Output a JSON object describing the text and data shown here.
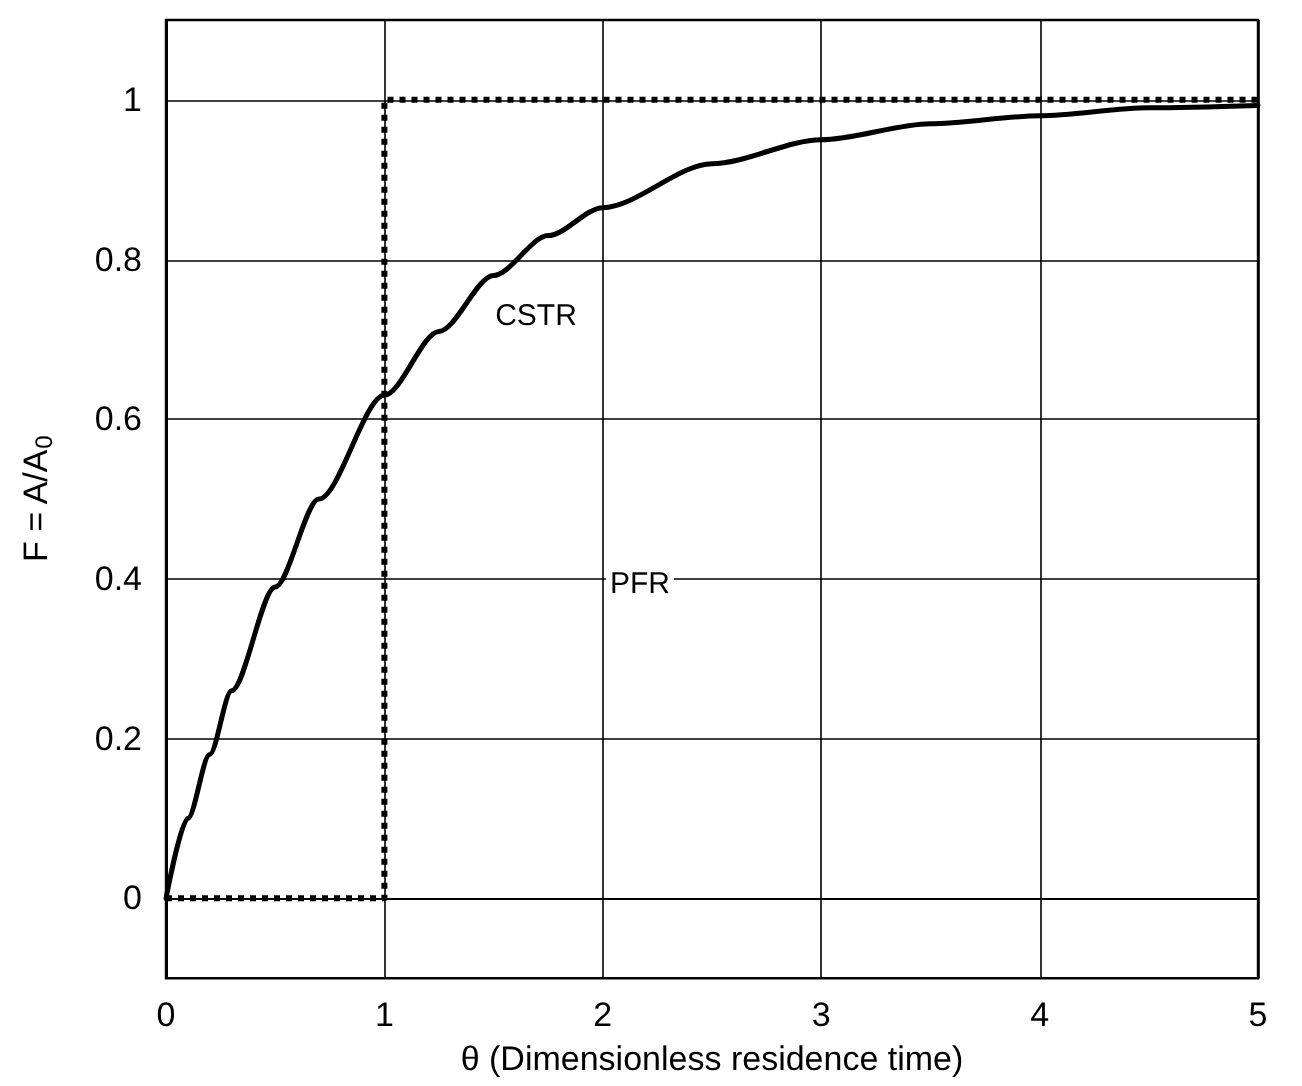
{
  "chart_data": {
    "type": "line",
    "xlabel": "θ (Dimensionless residence time)",
    "ylabel": "F = A/A$_{0}$",
    "xlim": [
      0,
      5
    ],
    "xticks": [
      0,
      1,
      2,
      3,
      4,
      5
    ],
    "ylim": [
      -0.1,
      1.1
    ],
    "yticks": [
      0,
      0.2,
      0.4,
      0.6,
      0.8,
      1
    ],
    "grid": true,
    "marker": "none",
    "series": [
      {
        "color": "#000000",
        "line_style": "solid",
        "x": [
          0,
          0.1,
          0.2,
          0.3,
          0.5,
          0.7,
          1,
          1.25,
          1.5,
          1.75,
          2,
          2.5,
          3,
          3.5,
          4,
          4.5,
          5
        ],
        "values": [
          0,
          0.1,
          0.18,
          0.26,
          0.39,
          0.5,
          0.63,
          0.71,
          0.78,
          0.83,
          0.865,
          0.92,
          0.95,
          0.97,
          0.98,
          0.99,
          0.993
        ]
      },
      {
        "color": "#000000",
        "line_style": "dotted",
        "x": [
          0,
          1,
          1,
          5
        ],
        "values": [
          0,
          0,
          1,
          1
        ]
      }
    ],
    "annotations": [
      "CSTR",
      "PFR"
    ]
  }
}
